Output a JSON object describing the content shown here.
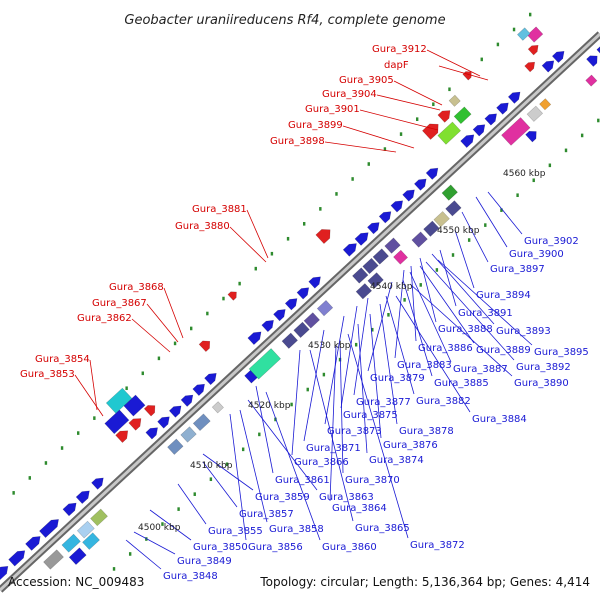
{
  "title": "Geobacter uraniireducens Rf4, complete genome",
  "footer": {
    "accession": "Accession: NC_009483",
    "topology": "Topology: circular; Length: 5,136,364 bp; Genes: 4,414"
  },
  "colors": {
    "forward_labels": "#d40000",
    "reverse_labels": "#1a1ad4",
    "axis": "#8c8c8c",
    "dots": "#2e8b2e"
  },
  "kbp_ticks": [
    "4500 kbp",
    "4510 kbp",
    "4520 kbp",
    "4530 kbp",
    "4540 kbp",
    "4550 kbp",
    "4560 kbp"
  ],
  "red_labels": [
    "Gura_3912",
    "dapF",
    "Gura_3905",
    "Gura_3904",
    "Gura_3901",
    "Gura_3899",
    "Gura_3898",
    "Gura_3881",
    "Gura_3880",
    "Gura_3868",
    "Gura_3867",
    "Gura_3862",
    "Gura_3854",
    "Gura_3853"
  ],
  "blue_labels": [
    "Gura_3902",
    "Gura_3900",
    "Gura_3897",
    "Gura_3894",
    "Gura_3891",
    "Gura_3893",
    "Gura_3888",
    "Gura_3895",
    "Gura_3886",
    "Gura_3889",
    "Gura_3892",
    "Gura_3883",
    "Gura_3887",
    "Gura_3879",
    "Gura_3885",
    "Gura_3890",
    "Gura_3877",
    "Gura_3882",
    "Gura_3875",
    "Gura_3884",
    "Gura_3873",
    "Gura_3878",
    "Gura_3871",
    "Gura_3876",
    "Gura_3866",
    "Gura_3874",
    "Gura_3861",
    "Gura_3870",
    "Gura_3863",
    "Gura_3859",
    "Gura_3864",
    "Gura_3857",
    "Gura_3855",
    "Gura_3858",
    "Gura_3865",
    "Gura_3850",
    "Gura_3856",
    "Gura_3860",
    "Gura_3872",
    "Gura_3849",
    "Gura_3848"
  ]
}
